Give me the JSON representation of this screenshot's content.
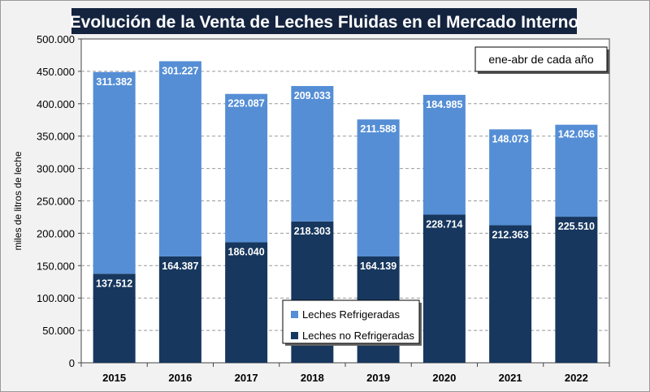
{
  "chart_data": {
    "type": "bar",
    "stacked": true,
    "title": "Evolución de la Venta de Leches Fluidas en el Mercado Interno",
    "annotation": "ene-abr de cada año",
    "ylabel": "miles de litros de leche",
    "xlabel": "",
    "ylim": [
      0,
      500000
    ],
    "yticks": [
      0,
      50000,
      100000,
      150000,
      200000,
      250000,
      300000,
      350000,
      400000,
      450000,
      500000
    ],
    "ytick_labels": [
      "0",
      "50.000",
      "100.000",
      "150.000",
      "200.000",
      "250.000",
      "300.000",
      "350.000",
      "400.000",
      "450.000",
      "500.000"
    ],
    "grid": "horizontal dashed",
    "legend_position": "bottom-center",
    "categories": [
      "2015",
      "2016",
      "2017",
      "2018",
      "2019",
      "2020",
      "2021",
      "2022"
    ],
    "series": [
      {
        "name": "Leches no Refrigeradas",
        "color": "#17375e",
        "values": [
          137512,
          164387,
          186040,
          218303,
          164139,
          228714,
          212363,
          225510
        ],
        "labels": [
          "137.512",
          "164.387",
          "186.040",
          "218.303",
          "164.139",
          "228.714",
          "212.363",
          "225.510"
        ]
      },
      {
        "name": "Leches Refrigeradas",
        "color": "#558ed5",
        "values": [
          311382,
          301227,
          229087,
          209033,
          211588,
          184985,
          148073,
          142056
        ],
        "labels": [
          "311.382",
          "301.227",
          "229.087",
          "209.033",
          "211.588",
          "184.985",
          "148.073",
          "142.056"
        ]
      }
    ],
    "legend_order": [
      1,
      0
    ]
  },
  "colors": {
    "title_bg": "#14243f",
    "background": "#f2f2f2",
    "plot_bg": "#ffffff"
  }
}
